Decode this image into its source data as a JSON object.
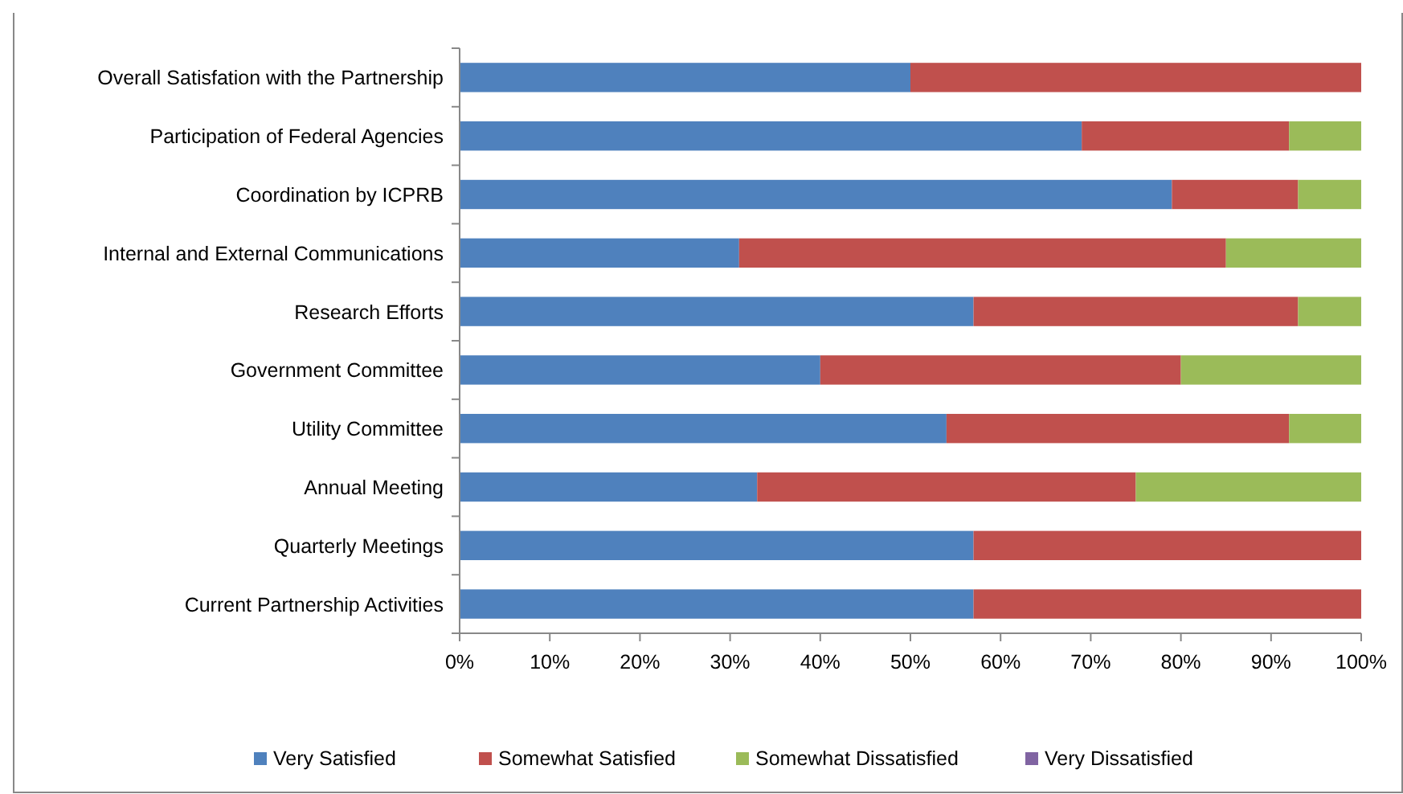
{
  "chart_data": {
    "type": "bar",
    "orientation": "horizontal",
    "stacked": true,
    "legend": "bottom",
    "grid": false,
    "categories": [
      "Overall Satisfation  with the Partnership",
      "Participation of Federal Agencies",
      "Coordination by ICPRB",
      "Internal and External Communications",
      "Research Efforts",
      "Government Committee",
      "Utility Committee",
      "Annual Meeting",
      "Quarterly Meetings",
      "Current Partnership Activities"
    ],
    "series": [
      {
        "name": "Very Satisfied",
        "color": "#4f81bd",
        "values": [
          50,
          69,
          79,
          31,
          57,
          40,
          54,
          33,
          57,
          57
        ]
      },
      {
        "name": "Somewhat Satisfied",
        "color": "#c0504d",
        "values": [
          50,
          23,
          14,
          54,
          36,
          40,
          38,
          42,
          43,
          43
        ]
      },
      {
        "name": "Somewhat Dissatisfied",
        "color": "#9bbb59",
        "values": [
          0,
          8,
          7,
          15,
          7,
          20,
          8,
          25,
          0,
          0
        ]
      },
      {
        "name": "Very Dissatisfied",
        "color": "#8064a2",
        "values": [
          0,
          0,
          0,
          0,
          0,
          0,
          0,
          0,
          0,
          0
        ]
      }
    ],
    "xlim": [
      0,
      100
    ],
    "xticks": [
      {
        "value": 0,
        "label": "0%"
      },
      {
        "value": 10,
        "label": "10%"
      },
      {
        "value": 20,
        "label": "20%"
      },
      {
        "value": 30,
        "label": "30%"
      },
      {
        "value": 40,
        "label": "40%"
      },
      {
        "value": 50,
        "label": "50%"
      },
      {
        "value": 60,
        "label": "60%"
      },
      {
        "value": 70,
        "label": "70%"
      },
      {
        "value": 80,
        "label": "80%"
      },
      {
        "value": 90,
        "label": "90%"
      },
      {
        "value": 100,
        "label": "100%"
      }
    ]
  }
}
